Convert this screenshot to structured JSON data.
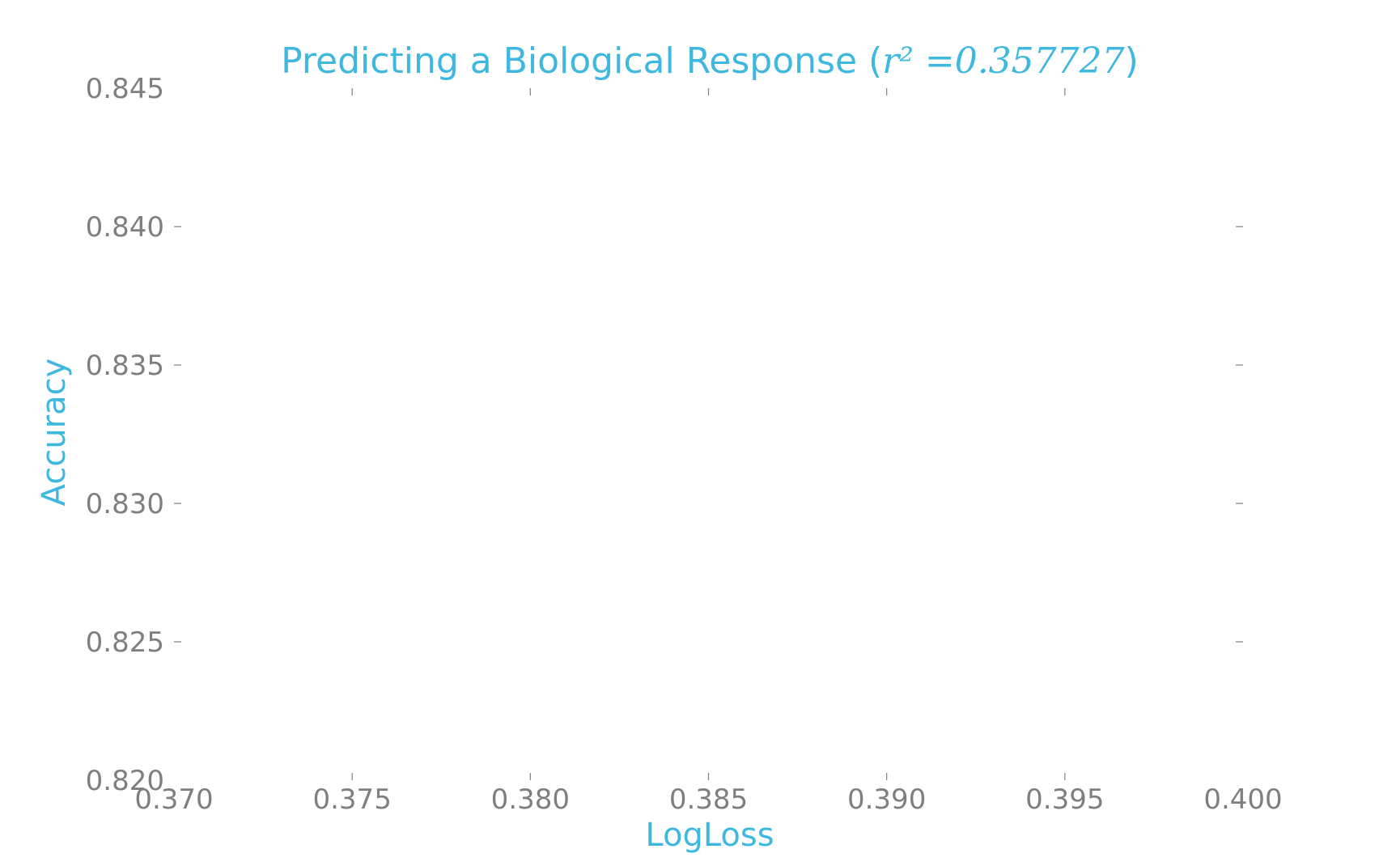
{
  "chart_data": {
    "type": "scatter",
    "title": "Predicting a Biological Response (",
    "title_math": "r² =0.357727",
    "title_close": ")",
    "xlabel": "LogLoss",
    "ylabel": "Accuracy",
    "xlim": [
      0.37,
      0.4
    ],
    "ylim": [
      0.82,
      0.845
    ],
    "xticks": [
      "0.370",
      "0.375",
      "0.380",
      "0.385",
      "0.390",
      "0.395",
      "0.400"
    ],
    "yticks": [
      "0.820",
      "0.825",
      "0.830",
      "0.835",
      "0.840",
      "0.845"
    ],
    "grid": false,
    "series": [
      {
        "x": [],
        "y": []
      }
    ],
    "colors": {
      "title": "#3fb8e0",
      "axis_label": "#3fb8e0",
      "tick": "#7f7f7f"
    }
  }
}
